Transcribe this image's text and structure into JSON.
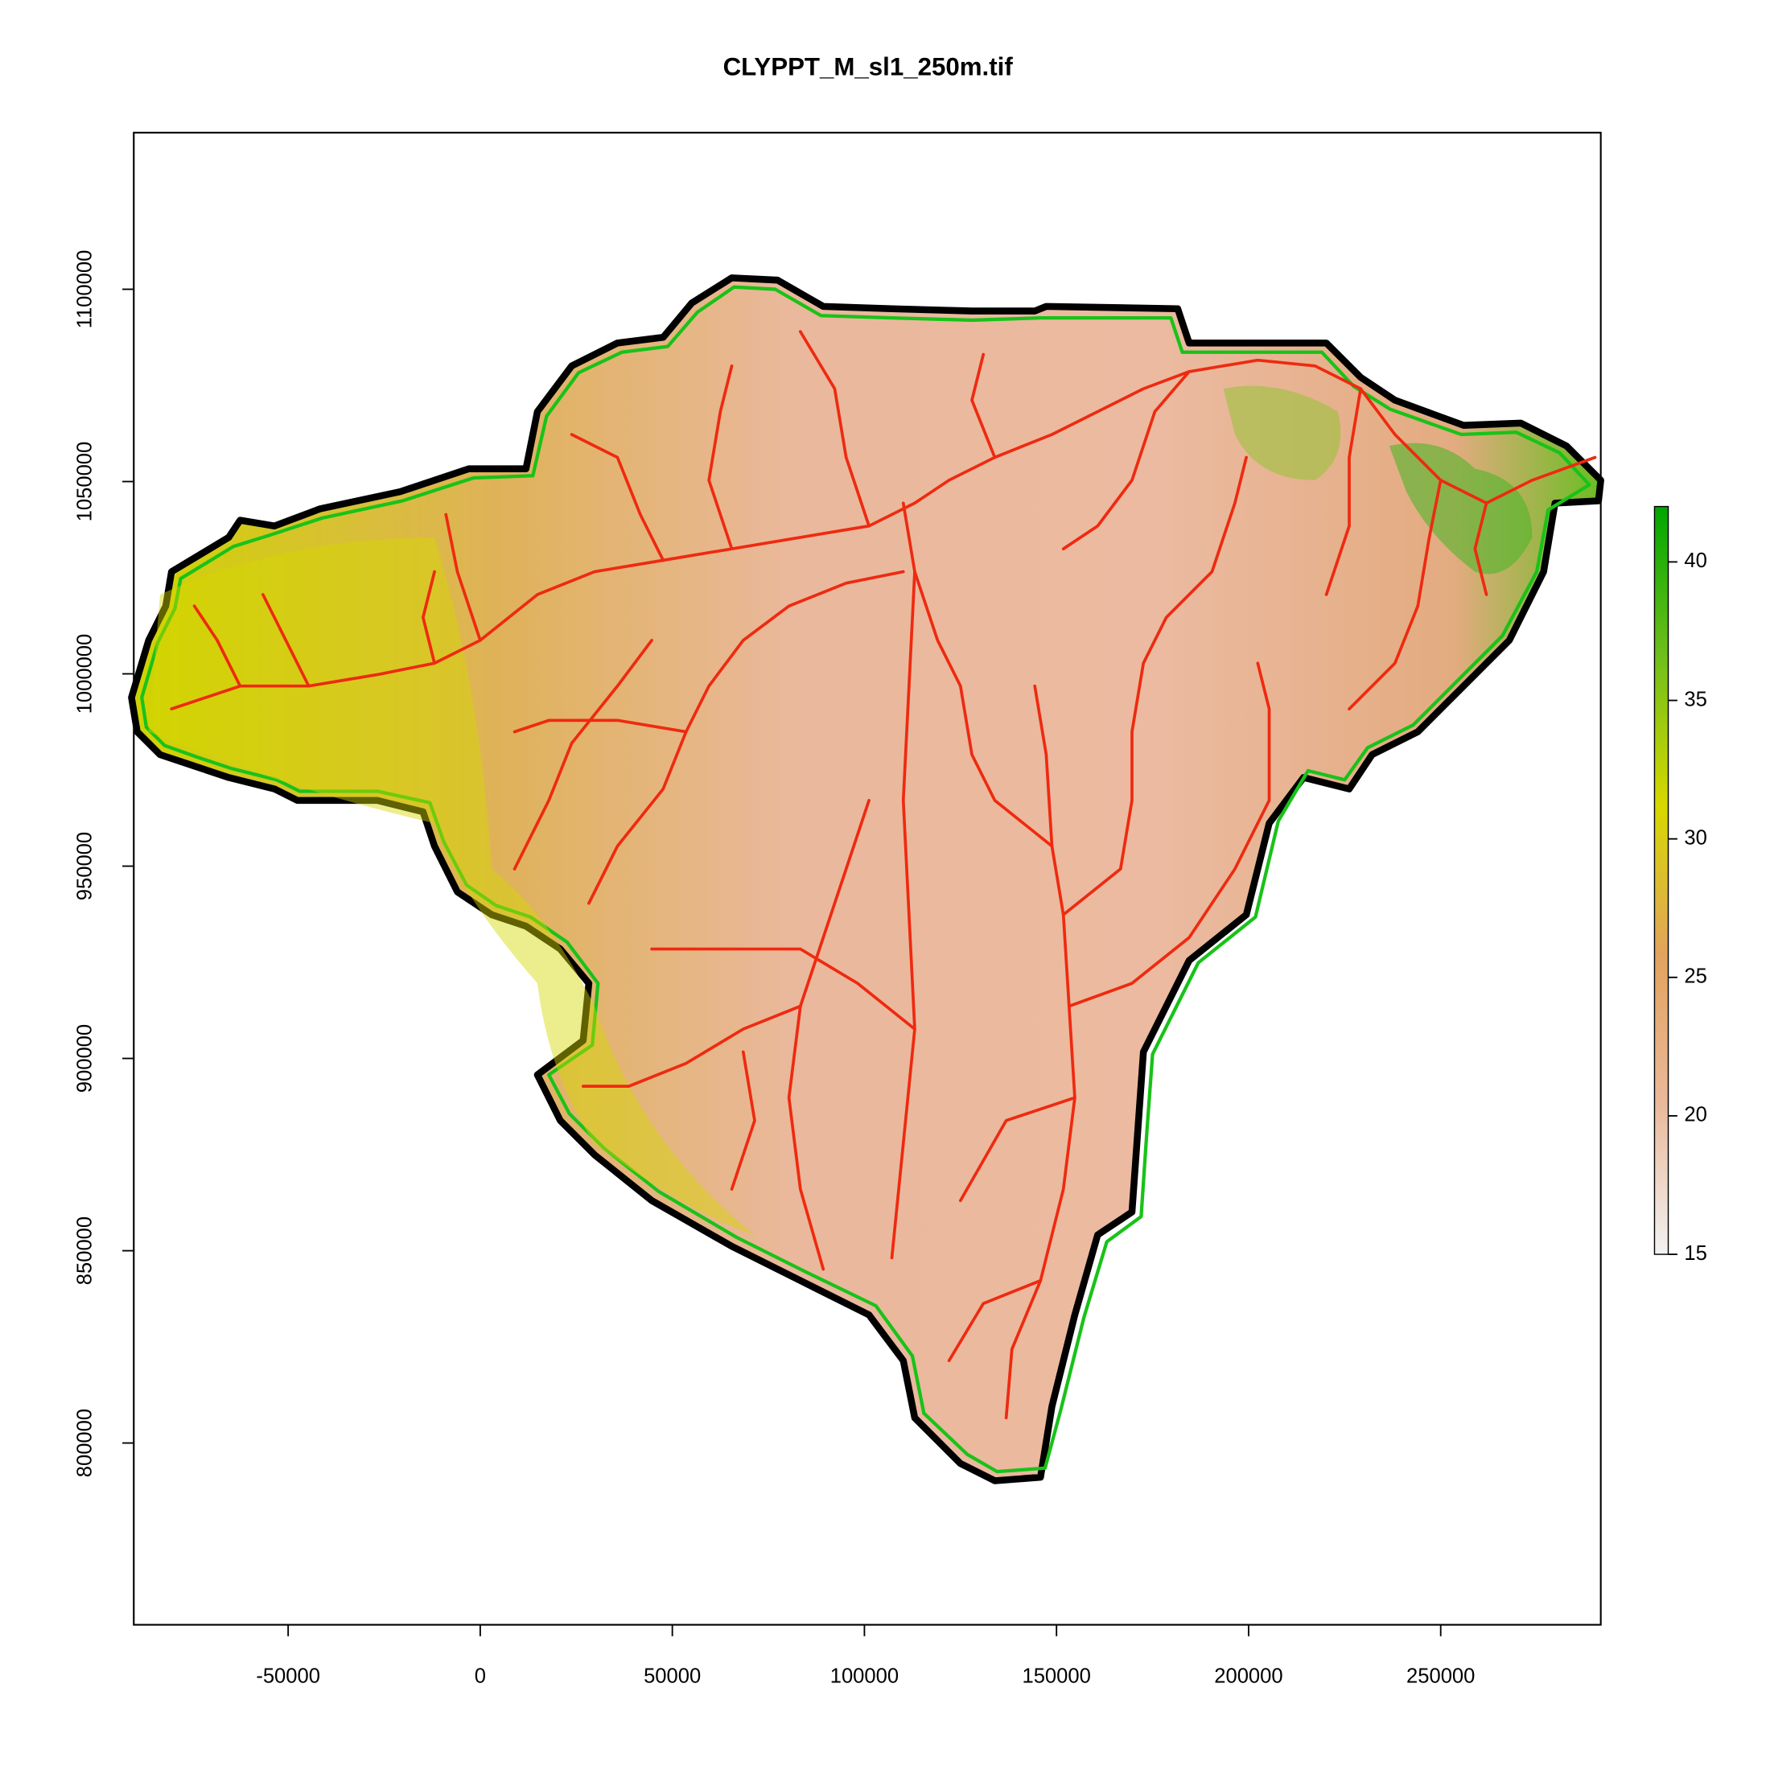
{
  "chart_data": {
    "type": "raster",
    "title": "CLYPPT_M_sl1_250m.tif",
    "xlim": [
      -90179,
      291667
    ],
    "ylim": [
      752734,
      1140725
    ],
    "xticks": [
      -50000,
      0,
      50000,
      100000,
      150000,
      200000,
      250000
    ],
    "yticks": [
      800000,
      850000,
      900000,
      950000,
      1000000,
      1050000,
      1100000
    ],
    "colorbar": {
      "lim": [
        15,
        42
      ],
      "ticks": [
        15,
        20,
        25,
        30,
        35,
        40
      ],
      "colors": [
        "#f2f2f2",
        "#ebb99b",
        "#e2a35e",
        "#d7d800",
        "#6fbf1a",
        "#00a600"
      ]
    }
  }
}
